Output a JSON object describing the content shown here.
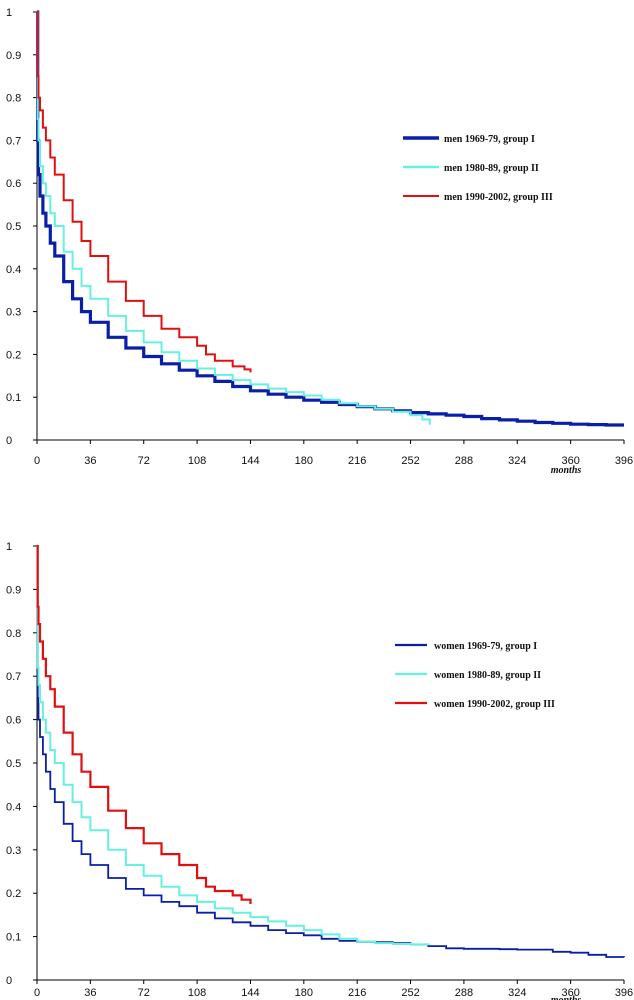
{
  "chart_data": [
    {
      "type": "line",
      "xlabel": "months",
      "ylabel": "",
      "xlim": [
        0,
        396
      ],
      "ylim": [
        0,
        1
      ],
      "x_ticks": [
        "0",
        "36",
        "72",
        "108",
        "144",
        "180",
        "216",
        "252",
        "288",
        "324",
        "360",
        "396"
      ],
      "y_ticks": [
        "0",
        "0.1",
        "0.2",
        "0.3",
        "0.4",
        "0.5",
        "0.6",
        "0.7",
        "0.8",
        "0.9",
        "1"
      ],
      "grid": false,
      "legend_position": "right",
      "series": [
        {
          "name": "men 1969-79, group I",
          "color": "#0a1fa8",
          "points": [
            [
              0,
              1
            ],
            [
              0.5,
              0.7
            ],
            [
              1,
              0.62
            ],
            [
              2,
              0.57
            ],
            [
              4,
              0.53
            ],
            [
              6,
              0.5
            ],
            [
              9,
              0.46
            ],
            [
              12,
              0.43
            ],
            [
              18,
              0.37
            ],
            [
              24,
              0.33
            ],
            [
              30,
              0.3
            ],
            [
              36,
              0.275
            ],
            [
              48,
              0.24
            ],
            [
              60,
              0.215
            ],
            [
              72,
              0.195
            ],
            [
              84,
              0.178
            ],
            [
              96,
              0.163
            ],
            [
              108,
              0.15
            ],
            [
              120,
              0.137
            ],
            [
              132,
              0.125
            ],
            [
              144,
              0.115
            ],
            [
              156,
              0.107
            ],
            [
              168,
              0.1
            ],
            [
              180,
              0.093
            ],
            [
              192,
              0.088
            ],
            [
              204,
              0.083
            ],
            [
              216,
              0.078
            ],
            [
              228,
              0.073
            ],
            [
              240,
              0.068
            ],
            [
              252,
              0.064
            ],
            [
              264,
              0.061
            ],
            [
              276,
              0.058
            ],
            [
              288,
              0.055
            ],
            [
              300,
              0.05
            ],
            [
              312,
              0.047
            ],
            [
              324,
              0.044
            ],
            [
              336,
              0.041
            ],
            [
              348,
              0.039
            ],
            [
              360,
              0.037
            ],
            [
              372,
              0.036
            ],
            [
              384,
              0.035
            ],
            [
              396,
              0.035
            ]
          ]
        },
        {
          "name": "men 1980-89, group II",
          "color": "#66f0e0",
          "points": [
            [
              0,
              1
            ],
            [
              0.5,
              0.75
            ],
            [
              1,
              0.7
            ],
            [
              2,
              0.64
            ],
            [
              4,
              0.6
            ],
            [
              6,
              0.57
            ],
            [
              9,
              0.53
            ],
            [
              12,
              0.5
            ],
            [
              18,
              0.44
            ],
            [
              24,
              0.4
            ],
            [
              30,
              0.36
            ],
            [
              36,
              0.33
            ],
            [
              48,
              0.29
            ],
            [
              60,
              0.255
            ],
            [
              72,
              0.228
            ],
            [
              84,
              0.205
            ],
            [
              96,
              0.185
            ],
            [
              108,
              0.167
            ],
            [
              120,
              0.152
            ],
            [
              132,
              0.14
            ],
            [
              144,
              0.13
            ],
            [
              156,
              0.12
            ],
            [
              168,
              0.112
            ],
            [
              180,
              0.104
            ],
            [
              192,
              0.094
            ],
            [
              204,
              0.086
            ],
            [
              216,
              0.079
            ],
            [
              228,
              0.073
            ],
            [
              240,
              0.066
            ],
            [
              252,
              0.058
            ],
            [
              260,
              0.048
            ],
            [
              265,
              0.036
            ]
          ]
        },
        {
          "name": "men 1990-2002, group III",
          "color": "#e01010",
          "points": [
            [
              0,
              1
            ],
            [
              0.5,
              0.85
            ],
            [
              1,
              0.8
            ],
            [
              2,
              0.77
            ],
            [
              4,
              0.73
            ],
            [
              6,
              0.7
            ],
            [
              9,
              0.66
            ],
            [
              12,
              0.62
            ],
            [
              18,
              0.56
            ],
            [
              24,
              0.51
            ],
            [
              30,
              0.465
            ],
            [
              36,
              0.43
            ],
            [
              48,
              0.37
            ],
            [
              60,
              0.325
            ],
            [
              72,
              0.29
            ],
            [
              84,
              0.26
            ],
            [
              96,
              0.24
            ],
            [
              108,
              0.22
            ],
            [
              114,
              0.2
            ],
            [
              120,
              0.185
            ],
            [
              132,
              0.172
            ],
            [
              140,
              0.165
            ],
            [
              144,
              0.158
            ]
          ]
        }
      ]
    },
    {
      "type": "line",
      "xlabel": "months",
      "ylabel": "",
      "xlim": [
        0,
        396
      ],
      "ylim": [
        0,
        1
      ],
      "x_ticks": [
        "0",
        "36",
        "72",
        "108",
        "144",
        "180",
        "216",
        "252",
        "288",
        "324",
        "360",
        "396"
      ],
      "y_ticks": [
        "0",
        "0.1",
        "0.2",
        "0.3",
        "0.4",
        "0.5",
        "0.6",
        "0.7",
        "0.8",
        "0.9",
        "1"
      ],
      "grid": false,
      "legend_position": "right",
      "series": [
        {
          "name": "women 1969-79, group I",
          "color": "#0a1fa8",
          "points": [
            [
              0,
              1
            ],
            [
              0.5,
              0.65
            ],
            [
              1,
              0.6
            ],
            [
              2,
              0.56
            ],
            [
              4,
              0.52
            ],
            [
              6,
              0.48
            ],
            [
              9,
              0.44
            ],
            [
              12,
              0.41
            ],
            [
              18,
              0.36
            ],
            [
              24,
              0.32
            ],
            [
              30,
              0.29
            ],
            [
              36,
              0.265
            ],
            [
              48,
              0.235
            ],
            [
              60,
              0.21
            ],
            [
              72,
              0.195
            ],
            [
              84,
              0.18
            ],
            [
              96,
              0.17
            ],
            [
              108,
              0.155
            ],
            [
              120,
              0.142
            ],
            [
              132,
              0.133
            ],
            [
              144,
              0.125
            ],
            [
              156,
              0.115
            ],
            [
              168,
              0.108
            ],
            [
              180,
              0.103
            ],
            [
              192,
              0.095
            ],
            [
              204,
              0.09
            ],
            [
              216,
              0.088
            ],
            [
              228,
              0.087
            ],
            [
              240,
              0.085
            ],
            [
              252,
              0.082
            ],
            [
              264,
              0.078
            ],
            [
              276,
              0.073
            ],
            [
              288,
              0.072
            ],
            [
              300,
              0.072
            ],
            [
              312,
              0.071
            ],
            [
              324,
              0.07
            ],
            [
              336,
              0.07
            ],
            [
              348,
              0.065
            ],
            [
              360,
              0.063
            ],
            [
              372,
              0.058
            ],
            [
              384,
              0.053
            ],
            [
              396,
              0.052
            ]
          ]
        },
        {
          "name": "women 1980-89, group II",
          "color": "#66f0e0",
          "points": [
            [
              0,
              1
            ],
            [
              0.5,
              0.72
            ],
            [
              1,
              0.68
            ],
            [
              2,
              0.64
            ],
            [
              4,
              0.6
            ],
            [
              6,
              0.57
            ],
            [
              9,
              0.53
            ],
            [
              12,
              0.5
            ],
            [
              18,
              0.45
            ],
            [
              24,
              0.41
            ],
            [
              30,
              0.375
            ],
            [
              36,
              0.345
            ],
            [
              48,
              0.3
            ],
            [
              60,
              0.265
            ],
            [
              72,
              0.24
            ],
            [
              84,
              0.215
            ],
            [
              96,
              0.195
            ],
            [
              108,
              0.18
            ],
            [
              120,
              0.165
            ],
            [
              132,
              0.155
            ],
            [
              144,
              0.145
            ],
            [
              156,
              0.135
            ],
            [
              168,
              0.125
            ],
            [
              180,
              0.115
            ],
            [
              192,
              0.105
            ],
            [
              204,
              0.095
            ],
            [
              216,
              0.088
            ],
            [
              228,
              0.085
            ],
            [
              240,
              0.083
            ],
            [
              252,
              0.082
            ],
            [
              264,
              0.08
            ]
          ]
        },
        {
          "name": "women 1990-2002, group III",
          "color": "#e01010",
          "points": [
            [
              0,
              1
            ],
            [
              0.5,
              0.86
            ],
            [
              1,
              0.82
            ],
            [
              2,
              0.78
            ],
            [
              4,
              0.74
            ],
            [
              6,
              0.7
            ],
            [
              9,
              0.67
            ],
            [
              12,
              0.63
            ],
            [
              18,
              0.57
            ],
            [
              24,
              0.52
            ],
            [
              30,
              0.48
            ],
            [
              36,
              0.445
            ],
            [
              48,
              0.39
            ],
            [
              60,
              0.35
            ],
            [
              72,
              0.315
            ],
            [
              84,
              0.29
            ],
            [
              96,
              0.265
            ],
            [
              108,
              0.235
            ],
            [
              114,
              0.215
            ],
            [
              120,
              0.205
            ],
            [
              132,
              0.195
            ],
            [
              138,
              0.185
            ],
            [
              144,
              0.175
            ]
          ]
        }
      ]
    }
  ]
}
